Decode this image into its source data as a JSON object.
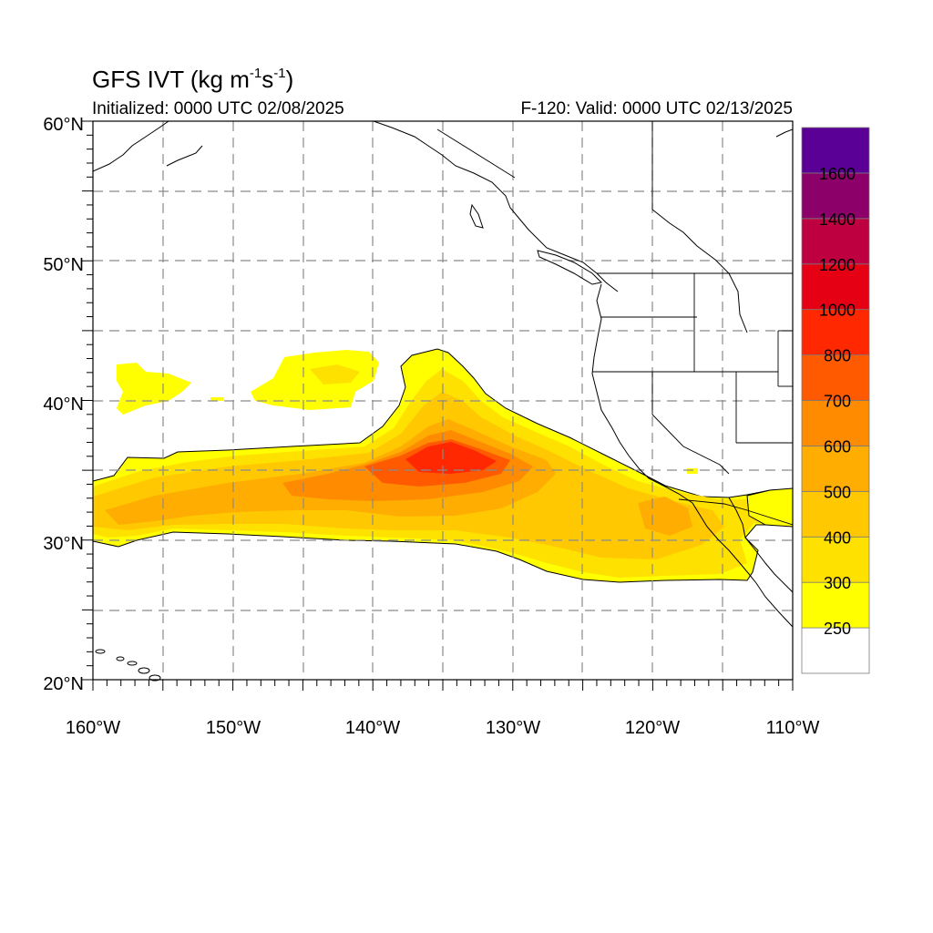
{
  "title": {
    "main": "GFS IVT (kg m",
    "sup1": "-1",
    "mid": "s",
    "sup2": "-1",
    "end": ")"
  },
  "subtitle": {
    "left": "Initialized: 0000 UTC 02/08/2025",
    "right": "F-120: Valid: 0000 UTC 02/13/2025"
  },
  "map": {
    "lon_range": [
      -160,
      -110
    ],
    "lat_range": [
      20,
      60
    ],
    "grid": "dashed, every 5 degrees",
    "lat_labels": [
      "20°N",
      "30°N",
      "40°N",
      "50°N",
      "60°N"
    ],
    "lon_labels": [
      "160°W",
      "150°W",
      "140°W",
      "130°W",
      "120°W",
      "110°W"
    ]
  },
  "colorbar": {
    "labels": [
      "250",
      "300",
      "400",
      "500",
      "600",
      "700",
      "800",
      "1000",
      "1200",
      "1400",
      "1600"
    ],
    "colors": [
      "#ffffff",
      "#ffff00",
      "#ffe100",
      "#ffc800",
      "#ffad00",
      "#ff8c00",
      "#ff5a00",
      "#ff2800",
      "#e60014",
      "#be0041",
      "#8c0069",
      "#5a0096"
    ]
  }
}
